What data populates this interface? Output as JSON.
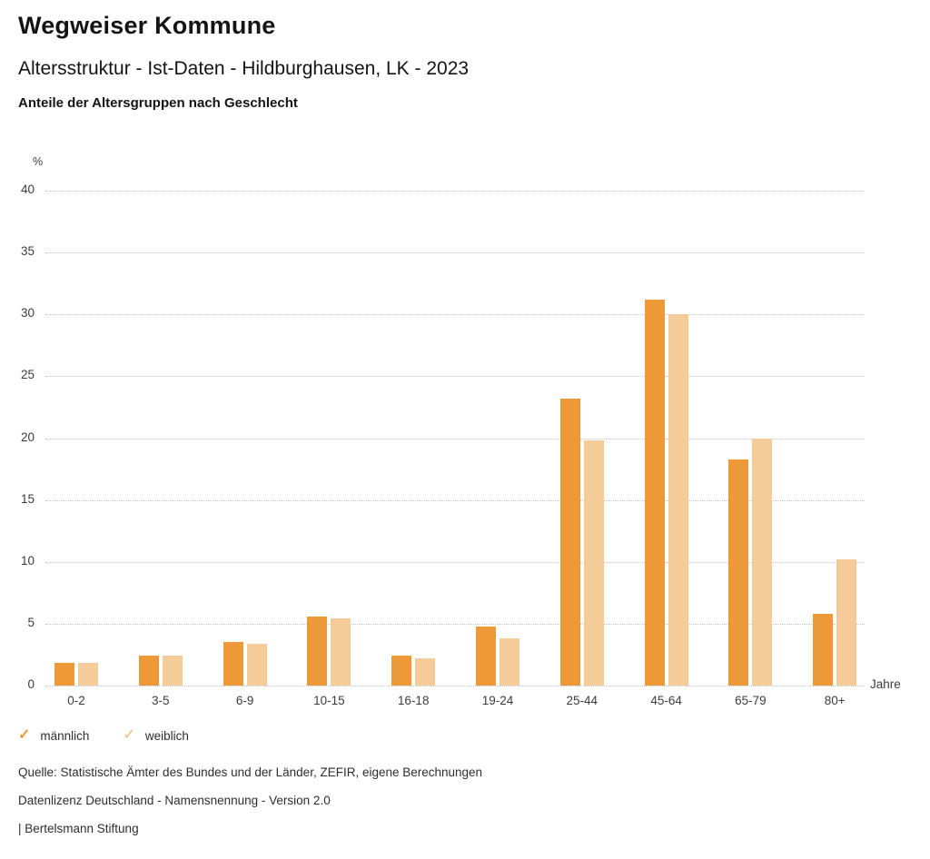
{
  "header": {
    "brand": "Wegweiser Kommune",
    "title": "Altersstruktur - Ist-Daten - Hildburghausen, LK - 2023",
    "subtitle": "Anteile der Altersgruppen nach Geschlecht"
  },
  "chart_data": {
    "type": "bar",
    "title": "Anteile der Altersgruppen nach Geschlecht",
    "categories": [
      "0-2",
      "3-5",
      "6-9",
      "10-15",
      "16-18",
      "19-24",
      "25-44",
      "45-64",
      "65-79",
      "80+"
    ],
    "series": [
      {
        "name": "männlich",
        "color": "#ED9938",
        "values": [
          1.8,
          2.4,
          3.5,
          5.6,
          2.4,
          4.8,
          23.2,
          31.2,
          18.3,
          5.8
        ]
      },
      {
        "name": "weiblich",
        "color": "#F5CC99",
        "values": [
          1.8,
          2.4,
          3.4,
          5.4,
          2.2,
          3.8,
          19.8,
          30.0,
          20.0,
          10.2
        ]
      }
    ],
    "xlabel": "Jahre",
    "ylabel": "%",
    "ylim": [
      0,
      40
    ],
    "ytick_step": 5,
    "grid": "horizontal-dotted",
    "legend_position": "bottom-left",
    "legend_icon": "check"
  },
  "footer": {
    "source": "Quelle: Statistische Ämter des Bundes und der Länder, ZEFIR, eigene Berechnungen",
    "license": "Datenlizenz Deutschland - Namensnennung - Version 2.0",
    "attribution": "| Bertelsmann Stiftung"
  }
}
